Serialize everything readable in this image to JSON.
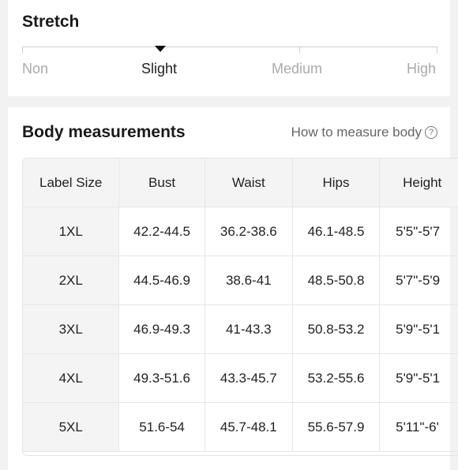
{
  "stretch": {
    "title": "Stretch",
    "options": [
      "Non",
      "Slight",
      "Medium",
      "High"
    ],
    "selected": "Slight"
  },
  "measurements": {
    "title": "Body measurements",
    "how_to": "How to measure body",
    "help_icon": "question-circle-icon",
    "columns": [
      "Label Size",
      "Bust",
      "Waist",
      "Hips",
      "Height"
    ],
    "rows": [
      [
        "1XL",
        "42.2-44.5",
        "36.2-38.6",
        "46.1-48.5",
        "5'5\"-5'7"
      ],
      [
        "2XL",
        "44.5-46.9",
        "38.6-41",
        "48.5-50.8",
        "5'7\"-5'9"
      ],
      [
        "3XL",
        "46.9-49.3",
        "41-43.3",
        "50.8-53.2",
        "5'9\"-5'1"
      ],
      [
        "4XL",
        "49.3-51.6",
        "43.3-45.7",
        "53.2-55.6",
        "5'9\"-5'1"
      ],
      [
        "5XL",
        "51.6-54",
        "45.7-48.1",
        "55.6-57.9",
        "5'11\"-6'"
      ]
    ]
  }
}
